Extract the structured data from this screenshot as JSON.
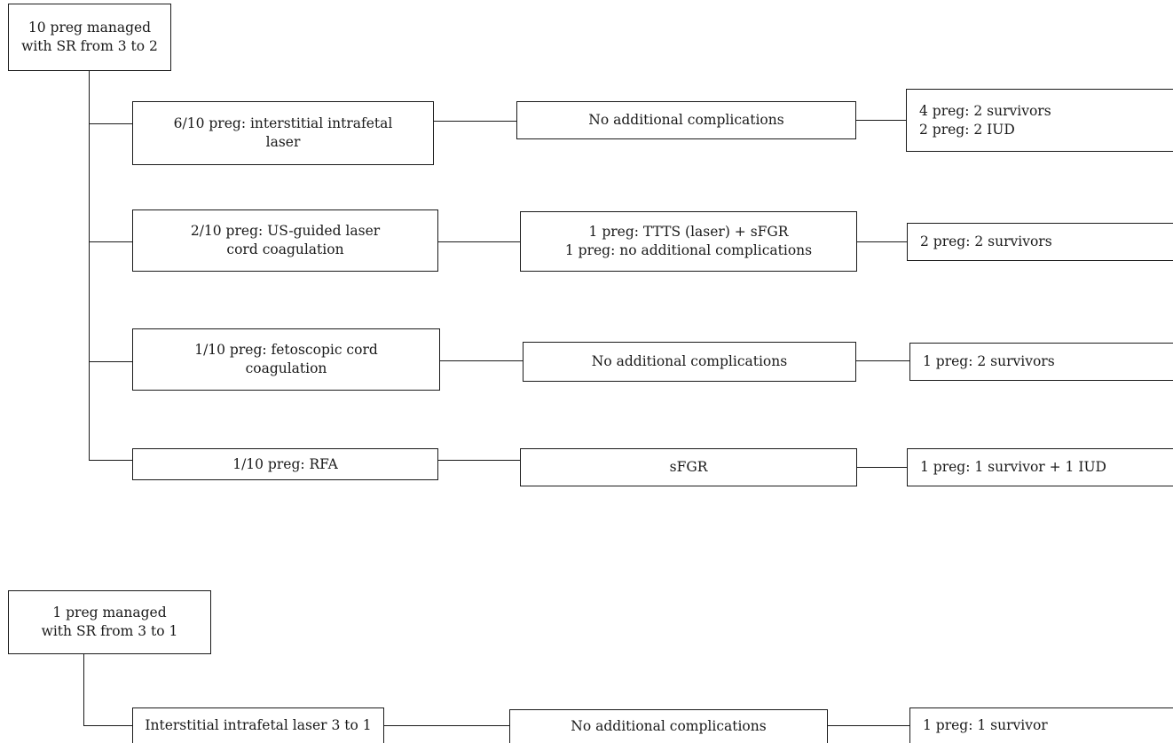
{
  "top": {
    "root": [
      "10 preg managed",
      "with SR from 3 to 2"
    ],
    "branches": [
      {
        "method": [
          "6/10 preg: interstitial intrafetal",
          "laser"
        ],
        "complication": [
          "No additional complications"
        ],
        "outcome": [
          "4 preg: 2 survivors",
          "2 preg: 2 IUD"
        ]
      },
      {
        "method": [
          "2/10 preg: US-guided laser",
          "cord coagulation"
        ],
        "complication": [
          "1 preg: TTTS (laser) + sFGR",
          "1 preg: no additional complications"
        ],
        "outcome": [
          "2 preg: 2 survivors"
        ]
      },
      {
        "method": [
          "1/10 preg: fetoscopic cord",
          "coagulation"
        ],
        "complication": [
          "No additional complications"
        ],
        "outcome": [
          "1 preg: 2 survivors"
        ]
      },
      {
        "method": [
          "1/10 preg: RFA"
        ],
        "complication": [
          "sFGR"
        ],
        "outcome": [
          "1 preg: 1 survivor + 1 IUD"
        ]
      }
    ]
  },
  "bottom": {
    "root": [
      "1 preg managed",
      "with SR from 3 to 1"
    ],
    "branches": [
      {
        "method": [
          "Interstitial intrafetal laser 3 to 1"
        ],
        "complication": [
          "No additional complications"
        ],
        "outcome": [
          "1 preg: 1 survivor"
        ]
      }
    ]
  }
}
